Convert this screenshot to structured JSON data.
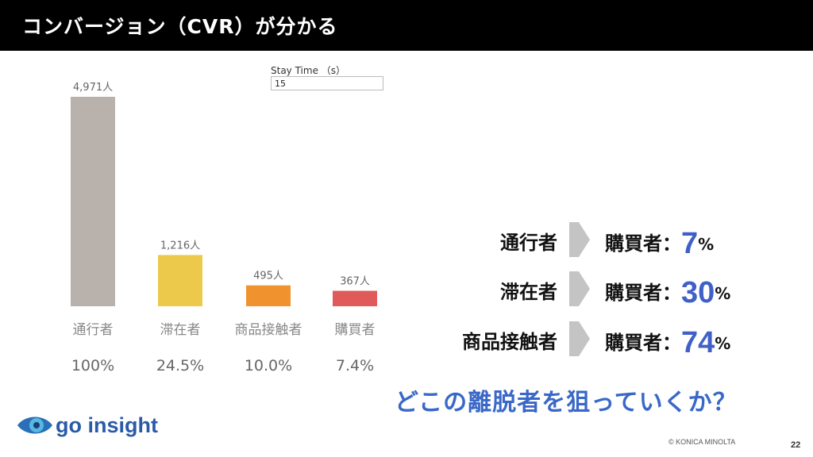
{
  "header": {
    "title": "コンバージョン（CVR）が分かる"
  },
  "filter": {
    "label": "Stay Time （s）",
    "value": "15"
  },
  "chart_data": {
    "type": "bar",
    "categories": [
      "通行者",
      "滞在者",
      "商品接触者",
      "購買者"
    ],
    "values": [
      4971,
      1216,
      495,
      367
    ],
    "value_labels": [
      "4,971人",
      "1,216人",
      "495人",
      "367人"
    ],
    "percent_labels": [
      "100%",
      "24.5%",
      "10.0%",
      "7.4%"
    ],
    "colors": [
      "#b9b1ac",
      "#ecc94a",
      "#f0922e",
      "#e05a5a"
    ],
    "ylim": [
      0,
      4971
    ],
    "grid": false
  },
  "flows": [
    {
      "source": "通行者",
      "target": "購買者：",
      "number": "7",
      "unit": "%"
    },
    {
      "source": "滞在者",
      "target": "購買者：",
      "number": "30",
      "unit": "%"
    },
    {
      "source": "商品接触者",
      "target": "購買者：",
      "number": "74",
      "unit": "%"
    }
  ],
  "question": "どこの離脱者を狙っていくか？",
  "logo": {
    "text": "go insight"
  },
  "footer": {
    "copyright": "© KONICA MINOLTA",
    "page": "22"
  },
  "colors": {
    "accent": "#3a68c8",
    "header_bg": "#000000"
  }
}
